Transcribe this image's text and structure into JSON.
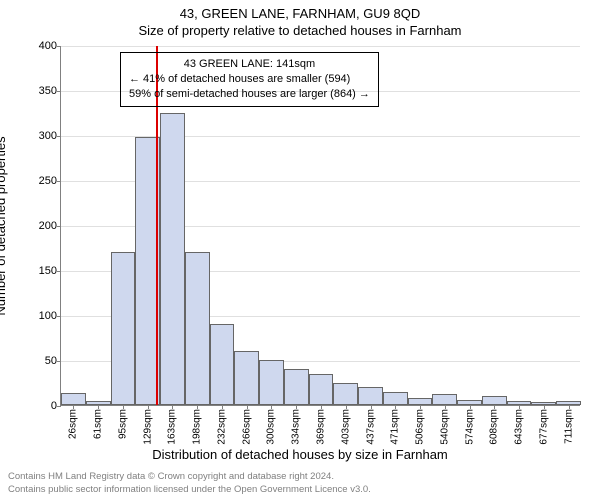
{
  "header": {
    "title": "43, GREEN LANE, FARNHAM, GU9 8QD",
    "subtitle": "Size of property relative to detached houses in Farnham"
  },
  "axes": {
    "ylabel": "Number of detached properties",
    "xlabel": "Distribution of detached houses by size in Farnham",
    "ylim_max": 400,
    "ytick_step": 50,
    "yticks": [
      0,
      50,
      100,
      150,
      200,
      250,
      300,
      350,
      400
    ],
    "grid_color": "#e0e0e0",
    "axis_color": "#808080"
  },
  "chart": {
    "type": "histogram",
    "bar_fill": "#cfd8ee",
    "bar_border": "#666666",
    "background": "#ffffff",
    "categories": [
      "26sqm",
      "61sqm",
      "95sqm",
      "129sqm",
      "163sqm",
      "198sqm",
      "232sqm",
      "266sqm",
      "300sqm",
      "334sqm",
      "369sqm",
      "403sqm",
      "437sqm",
      "471sqm",
      "506sqm",
      "540sqm",
      "574sqm",
      "608sqm",
      "643sqm",
      "677sqm",
      "711sqm"
    ],
    "values": [
      13,
      5,
      170,
      298,
      325,
      170,
      90,
      60,
      50,
      40,
      35,
      25,
      20,
      15,
      8,
      12,
      6,
      10,
      5,
      3,
      5
    ]
  },
  "reference": {
    "line_color": "#dc0000",
    "line_index": 3.35,
    "box": {
      "line1": "43 GREEN LANE: 141sqm",
      "line2": "← 41% of detached houses are smaller (594)",
      "line3": "59% of semi-detached houses are larger (864) →"
    }
  },
  "footer": {
    "line1": "Contains HM Land Registry data © Crown copyright and database right 2024.",
    "line2": "Contains public sector information licensed under the Open Government Licence v3.0."
  },
  "style": {
    "title_fontsize": 13,
    "label_fontsize": 13,
    "tick_fontsize": 11,
    "xtick_fontsize": 10,
    "annot_fontsize": 11,
    "footer_fontsize": 9.5,
    "footer_color": "#808080"
  }
}
